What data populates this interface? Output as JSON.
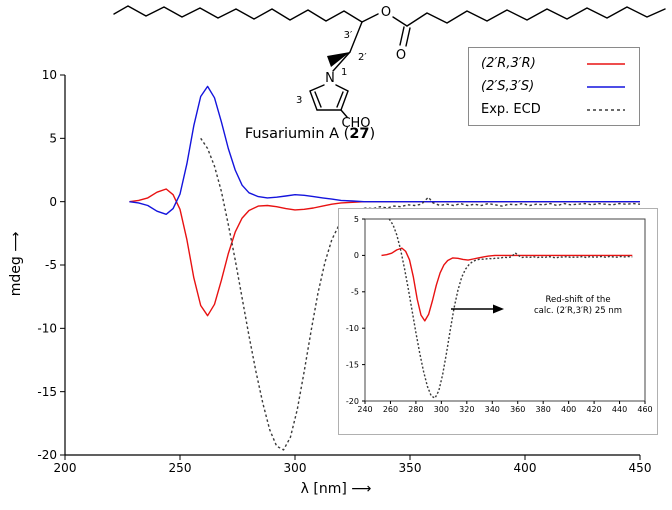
{
  "structure": {
    "caption_prefix": "Fusariumin A (",
    "caption_number": "27",
    "caption_suffix": ")",
    "atom_labels": {
      "o_ester": "O",
      "o_carbonyl": "O",
      "n": "N",
      "cho": "CHO",
      "pos_3prime": "3′",
      "pos_2prime": "2′",
      "pos_1": "1",
      "pos_3": "3"
    }
  },
  "legend": {
    "entries": [
      {
        "label": "(2′R,3′R)",
        "color": "#e81212",
        "dash": ""
      },
      {
        "label": "(2′S,3′S)",
        "color": "#1414dd",
        "dash": ""
      },
      {
        "label": "Exp. ECD",
        "color": "#3a3a3a",
        "dash": "3 3"
      }
    ]
  },
  "chart_data": [
    {
      "type": "line",
      "title": "",
      "xlabel": "λ [nm]  ⟶",
      "ylabel": "mdeg  ⟶",
      "xlim": [
        200,
        450
      ],
      "ylim": [
        -20,
        10
      ],
      "xticks": [
        200,
        250,
        300,
        350,
        400,
        450
      ],
      "yticks": [
        10,
        5,
        0,
        -5,
        -10,
        -15,
        -20
      ],
      "grid": false,
      "legend_position": "top-right",
      "series": [
        {
          "name": "calc-2R3R",
          "label": "(2′R,3′R)",
          "color": "#e81212",
          "dash": "",
          "points": [
            [
              228,
              0
            ],
            [
              232,
              0.1
            ],
            [
              236,
              0.3
            ],
            [
              240,
              0.75
            ],
            [
              244,
              1.0
            ],
            [
              247,
              0.55
            ],
            [
              250,
              -0.6
            ],
            [
              253,
              -3.0
            ],
            [
              256,
              -6.0
            ],
            [
              259,
              -8.2
            ],
            [
              262,
              -9.0
            ],
            [
              265,
              -8.1
            ],
            [
              268,
              -6.2
            ],
            [
              271,
              -4.1
            ],
            [
              274,
              -2.4
            ],
            [
              277,
              -1.3
            ],
            [
              280,
              -0.7
            ],
            [
              284,
              -0.35
            ],
            [
              288,
              -0.3
            ],
            [
              292,
              -0.4
            ],
            [
              296,
              -0.55
            ],
            [
              300,
              -0.65
            ],
            [
              304,
              -0.6
            ],
            [
              308,
              -0.5
            ],
            [
              312,
              -0.35
            ],
            [
              316,
              -0.2
            ],
            [
              320,
              -0.1
            ],
            [
              325,
              -0.05
            ],
            [
              330,
              0
            ],
            [
              340,
              0
            ],
            [
              350,
              0
            ],
            [
              360,
              0
            ],
            [
              375,
              0
            ],
            [
              390,
              0
            ],
            [
              405,
              0
            ],
            [
              420,
              0
            ],
            [
              435,
              0
            ],
            [
              450,
              0
            ]
          ]
        },
        {
          "name": "calc-2S3S",
          "label": "(2′S,3′S)",
          "color": "#1414dd",
          "dash": "",
          "points": [
            [
              228,
              0
            ],
            [
              232,
              -0.1
            ],
            [
              236,
              -0.3
            ],
            [
              240,
              -0.75
            ],
            [
              244,
              -1.0
            ],
            [
              247,
              -0.55
            ],
            [
              250,
              0.6
            ],
            [
              253,
              3.0
            ],
            [
              256,
              6.0
            ],
            [
              259,
              8.3
            ],
            [
              262,
              9.1
            ],
            [
              265,
              8.2
            ],
            [
              268,
              6.3
            ],
            [
              271,
              4.2
            ],
            [
              274,
              2.5
            ],
            [
              277,
              1.3
            ],
            [
              280,
              0.7
            ],
            [
              284,
              0.4
            ],
            [
              288,
              0.3
            ],
            [
              292,
              0.35
            ],
            [
              296,
              0.45
            ],
            [
              300,
              0.55
            ],
            [
              304,
              0.5
            ],
            [
              308,
              0.4
            ],
            [
              312,
              0.3
            ],
            [
              316,
              0.2
            ],
            [
              320,
              0.1
            ],
            [
              325,
              0.05
            ],
            [
              330,
              0
            ],
            [
              340,
              0
            ],
            [
              350,
              0
            ],
            [
              360,
              0
            ],
            [
              375,
              0
            ],
            [
              390,
              0
            ],
            [
              405,
              0
            ],
            [
              420,
              0
            ],
            [
              435,
              0
            ],
            [
              450,
              0
            ]
          ]
        },
        {
          "name": "exp-ecd",
          "label": "Exp. ECD",
          "color": "#3a3a3a",
          "dash": "2.5 2.5",
          "points": [
            [
              259,
              5.0
            ],
            [
              262,
              4.2
            ],
            [
              265,
              2.8
            ],
            [
              268,
              0.8
            ],
            [
              271,
              -1.8
            ],
            [
              274,
              -4.6
            ],
            [
              277,
              -7.6
            ],
            [
              280,
              -10.6
            ],
            [
              283,
              -13.4
            ],
            [
              286,
              -15.9
            ],
            [
              289,
              -18.0
            ],
            [
              292,
              -19.3
            ],
            [
              295,
              -19.6
            ],
            [
              298,
              -18.6
            ],
            [
              301,
              -16.4
            ],
            [
              304,
              -13.4
            ],
            [
              307,
              -10.2
            ],
            [
              310,
              -7.2
            ],
            [
              313,
              -4.8
            ],
            [
              316,
              -3.0
            ],
            [
              319,
              -1.9
            ],
            [
              322,
              -1.2
            ],
            [
              325,
              -0.8
            ],
            [
              328,
              -0.6
            ],
            [
              331,
              -0.5
            ],
            [
              334,
              -0.55
            ],
            [
              337,
              -0.4
            ],
            [
              340,
              -0.5
            ],
            [
              343,
              -0.35
            ],
            [
              346,
              -0.4
            ],
            [
              349,
              -0.25
            ],
            [
              352,
              -0.3
            ],
            [
              355,
              -0.2
            ],
            [
              358,
              0.35
            ],
            [
              360,
              -0.1
            ],
            [
              363,
              -0.3
            ],
            [
              366,
              -0.2
            ],
            [
              369,
              -0.3
            ],
            [
              372,
              -0.15
            ],
            [
              375,
              -0.3
            ],
            [
              378,
              -0.2
            ],
            [
              381,
              -0.3
            ],
            [
              384,
              -0.15
            ],
            [
              387,
              -0.25
            ],
            [
              390,
              -0.35
            ],
            [
              393,
              -0.2
            ],
            [
              396,
              -0.25
            ],
            [
              399,
              -0.15
            ],
            [
              402,
              -0.3
            ],
            [
              405,
              -0.2
            ],
            [
              408,
              -0.25
            ],
            [
              411,
              -0.15
            ],
            [
              414,
              -0.3
            ],
            [
              417,
              -0.15
            ],
            [
              420,
              -0.25
            ],
            [
              423,
              -0.2
            ],
            [
              426,
              -0.15
            ],
            [
              429,
              -0.25
            ],
            [
              432,
              -0.15
            ],
            [
              435,
              -0.2
            ],
            [
              438,
              -0.25
            ],
            [
              441,
              -0.15
            ],
            [
              444,
              -0.2
            ],
            [
              447,
              -0.15
            ],
            [
              450,
              -0.2
            ]
          ]
        }
      ]
    },
    {
      "type": "line",
      "title": "",
      "xlabel": "",
      "ylabel": "",
      "xlim": [
        240,
        460
      ],
      "ylim": [
        -20,
        5
      ],
      "xticks": [
        240,
        260,
        280,
        300,
        320,
        340,
        360,
        380,
        400,
        420,
        440,
        460
      ],
      "yticks": [
        5,
        0,
        -5,
        -10,
        -15,
        -20
      ],
      "grid": false,
      "annotation": {
        "line1": "Red-shift of the",
        "line2": "calc. (2′R,3′R) 25 nm"
      },
      "series": [
        {
          "name": "calc-2R3R-redshifted",
          "label": "(2′R,3′R) red-shifted 25 nm",
          "color": "#e81212",
          "dash": "",
          "points": [
            [
              253,
              0
            ],
            [
              257,
              0.1
            ],
            [
              261,
              0.3
            ],
            [
              265,
              0.75
            ],
            [
              269,
              1.0
            ],
            [
              272,
              0.55
            ],
            [
              275,
              -0.6
            ],
            [
              278,
              -3.0
            ],
            [
              281,
              -6.0
            ],
            [
              284,
              -8.2
            ],
            [
              287,
              -9.0
            ],
            [
              290,
              -8.1
            ],
            [
              293,
              -6.2
            ],
            [
              296,
              -4.1
            ],
            [
              299,
              -2.4
            ],
            [
              302,
              -1.3
            ],
            [
              305,
              -0.7
            ],
            [
              309,
              -0.35
            ],
            [
              313,
              -0.4
            ],
            [
              317,
              -0.55
            ],
            [
              321,
              -0.65
            ],
            [
              325,
              -0.5
            ],
            [
              329,
              -0.35
            ],
            [
              333,
              -0.2
            ],
            [
              337,
              -0.1
            ],
            [
              342,
              0
            ],
            [
              350,
              0
            ],
            [
              360,
              0
            ],
            [
              375,
              0
            ],
            [
              390,
              0
            ],
            [
              405,
              0
            ],
            [
              420,
              0
            ],
            [
              435,
              0
            ],
            [
              450,
              0
            ]
          ]
        },
        {
          "name": "exp-ecd",
          "label": "Exp. ECD",
          "color": "#3a3a3a",
          "dash": "2 2",
          "points": [
            [
              259,
              5.0
            ],
            [
              262,
              4.2
            ],
            [
              265,
              2.8
            ],
            [
              268,
              0.8
            ],
            [
              271,
              -1.8
            ],
            [
              274,
              -4.6
            ],
            [
              277,
              -7.6
            ],
            [
              280,
              -10.6
            ],
            [
              283,
              -13.4
            ],
            [
              286,
              -15.9
            ],
            [
              289,
              -18.0
            ],
            [
              292,
              -19.3
            ],
            [
              295,
              -19.6
            ],
            [
              298,
              -18.6
            ],
            [
              301,
              -16.4
            ],
            [
              304,
              -13.4
            ],
            [
              307,
              -10.2
            ],
            [
              310,
              -7.2
            ],
            [
              313,
              -4.8
            ],
            [
              316,
              -3.0
            ],
            [
              319,
              -1.9
            ],
            [
              322,
              -1.2
            ],
            [
              325,
              -0.8
            ],
            [
              328,
              -0.6
            ],
            [
              331,
              -0.5
            ],
            [
              334,
              -0.55
            ],
            [
              337,
              -0.4
            ],
            [
              340,
              -0.5
            ],
            [
              343,
              -0.35
            ],
            [
              346,
              -0.4
            ],
            [
              349,
              -0.25
            ],
            [
              352,
              -0.3
            ],
            [
              355,
              -0.2
            ],
            [
              358,
              0.35
            ],
            [
              363,
              -0.3
            ],
            [
              366,
              -0.2
            ],
            [
              369,
              -0.3
            ],
            [
              372,
              -0.15
            ],
            [
              375,
              -0.3
            ],
            [
              378,
              -0.2
            ],
            [
              381,
              -0.3
            ],
            [
              384,
              -0.15
            ],
            [
              387,
              -0.25
            ],
            [
              390,
              -0.35
            ],
            [
              393,
              -0.2
            ],
            [
              396,
              -0.25
            ],
            [
              399,
              -0.15
            ],
            [
              402,
              -0.3
            ],
            [
              405,
              -0.2
            ],
            [
              408,
              -0.25
            ],
            [
              411,
              -0.15
            ],
            [
              414,
              -0.3
            ],
            [
              417,
              -0.15
            ],
            [
              420,
              -0.25
            ],
            [
              423,
              -0.2
            ],
            [
              426,
              -0.15
            ],
            [
              429,
              -0.25
            ],
            [
              432,
              -0.15
            ],
            [
              435,
              -0.2
            ],
            [
              438,
              -0.25
            ],
            [
              441,
              -0.15
            ],
            [
              444,
              -0.2
            ],
            [
              447,
              -0.15
            ],
            [
              450,
              -0.2
            ]
          ]
        }
      ]
    }
  ]
}
